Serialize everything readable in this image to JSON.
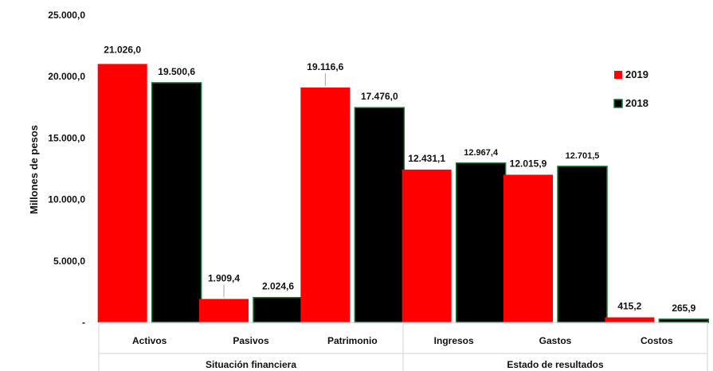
{
  "chart_data": {
    "type": "bar",
    "ylabel": "Millones de pesos",
    "ylim": [
      0,
      25000
    ],
    "yticks": [
      0,
      5000,
      10000,
      15000,
      20000,
      25000
    ],
    "ytick_labels": [
      "-",
      "5.000,0",
      "10.000,0",
      "15.000,0",
      "20.000,0",
      "25.000,0"
    ],
    "grid": false,
    "legend_position": "right",
    "categories": [
      "Activos",
      "Pasivos",
      "Patrimonio",
      "Ingresos",
      "Gastos",
      "Costos"
    ],
    "groups": [
      {
        "label": "Situación financiera",
        "categories": [
          "Activos",
          "Pasivos",
          "Patrimonio"
        ]
      },
      {
        "label": "Estado de resultados",
        "categories": [
          "Ingresos",
          "Gastos",
          "Costos"
        ]
      }
    ],
    "series": [
      {
        "name": "2019",
        "color": "#ff0000",
        "values": [
          21026.0,
          1909.4,
          19116.6,
          12431.1,
          12015.9,
          415.2
        ],
        "labels": [
          "21.026,0",
          "1.909,4",
          "19.116,6",
          "12.431,1",
          "12.015,9",
          "415,2"
        ]
      },
      {
        "name": "2018",
        "color": "#000000",
        "values": [
          19500.6,
          2024.6,
          17476.0,
          12967.4,
          12701.5,
          265.9
        ],
        "labels": [
          "19.500,6",
          "2.024,6",
          "17.476,0",
          "12.967,4",
          "12.701,5",
          "265,9"
        ]
      }
    ]
  }
}
